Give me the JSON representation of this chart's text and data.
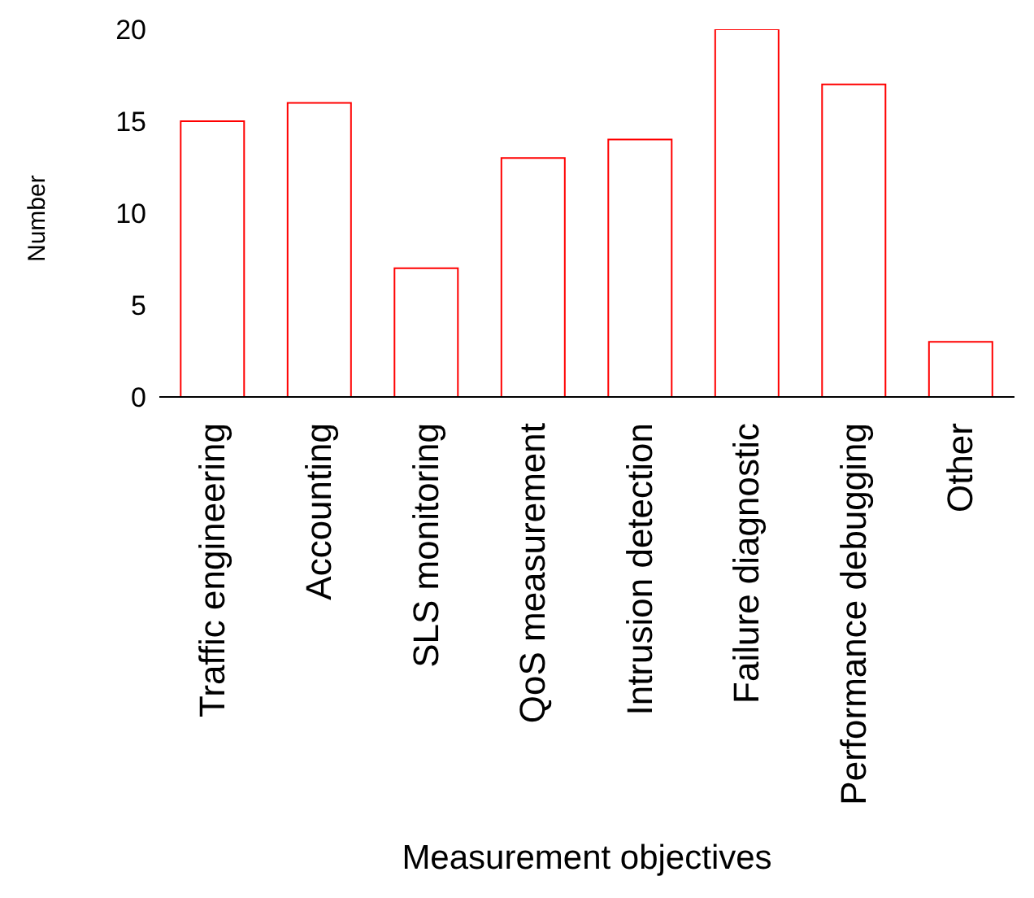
{
  "chart_data": {
    "type": "bar",
    "xlabel": "Measurement objectives",
    "ylabel": "Number",
    "categories": [
      "Traffic engineering",
      "Accounting",
      "SLS monitoring",
      "QoS measurement",
      "Intrusion detection",
      "Failure diagnostic",
      "Performance debugging",
      "Other"
    ],
    "series": [
      {
        "color": "#ff0000",
        "values": [
          15,
          16,
          7,
          13,
          14,
          20,
          17,
          3
        ]
      }
    ],
    "ylim": [
      0,
      20
    ],
    "yticks": [
      0,
      5,
      10,
      15,
      20
    ],
    "grid": false,
    "legend": false
  }
}
